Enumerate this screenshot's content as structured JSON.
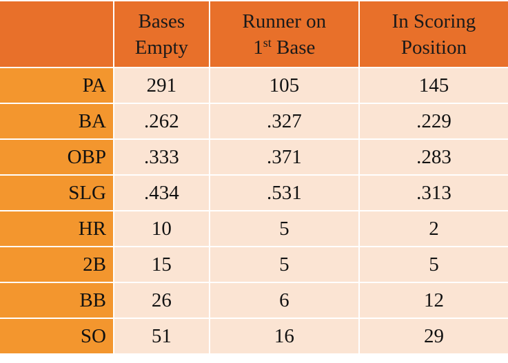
{
  "table": {
    "header": [
      [
        [
          "Bases"
        ],
        [
          "Empty"
        ]
      ],
      [
        [
          "Runner on"
        ],
        [
          "1",
          "st",
          "Base"
        ]
      ],
      [
        [
          "In Scoring"
        ],
        [
          "Position"
        ]
      ]
    ],
    "rows": [
      [
        "PA",
        "291",
        "105",
        "145"
      ],
      [
        "BA",
        ".262",
        ".327",
        ".229"
      ],
      [
        "OBP",
        ".333",
        ".371",
        ".283"
      ],
      [
        "SLG",
        ".434",
        ".531",
        ".313"
      ],
      [
        "HR",
        "10",
        "5",
        "2"
      ],
      [
        "2B",
        "15",
        "5",
        "5"
      ],
      [
        "BB",
        "26",
        "6",
        "12"
      ],
      [
        "SO",
        "51",
        "16",
        "29"
      ]
    ]
  }
}
